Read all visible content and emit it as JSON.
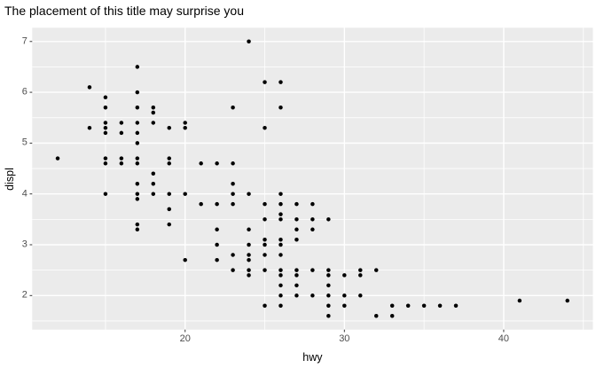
{
  "title": "The placement of this title may surprise you",
  "chart_data": {
    "type": "scatter",
    "title": "The placement of this title may surprise you",
    "xlabel": "hwy",
    "ylabel": "displ",
    "xlim": [
      10.4,
      45.6
    ],
    "ylim": [
      1.33,
      7.27
    ],
    "x_major_ticks": [
      20,
      30,
      40
    ],
    "x_minor_ticks": [
      15,
      25,
      35,
      45
    ],
    "y_major_ticks": [
      2,
      3,
      4,
      5,
      6,
      7
    ],
    "y_minor_ticks": [
      1.5,
      2.5,
      3.5,
      4.5,
      5.5,
      6.5
    ],
    "grid": true,
    "legend": "none",
    "panel_bg": "#EBEBEB",
    "grid_color": "#FFFFFF",
    "point_color": "#000000",
    "tick_label_color": "#4D4D4D",
    "tick_mark_color": "#333333",
    "points": [
      [
        12,
        4.7
      ],
      [
        14,
        5.3
      ],
      [
        14,
        6.1
      ],
      [
        15,
        4.0
      ],
      [
        15,
        4.6
      ],
      [
        15,
        4.7
      ],
      [
        15,
        5.2
      ],
      [
        15,
        5.3
      ],
      [
        15,
        5.4
      ],
      [
        15,
        5.7
      ],
      [
        15,
        5.9
      ],
      [
        16,
        4.6
      ],
      [
        16,
        4.7
      ],
      [
        16,
        5.2
      ],
      [
        16,
        5.4
      ],
      [
        17,
        3.3
      ],
      [
        17,
        3.4
      ],
      [
        17,
        3.9
      ],
      [
        17,
        4.0
      ],
      [
        17,
        4.2
      ],
      [
        17,
        4.6
      ],
      [
        17,
        4.7
      ],
      [
        17,
        5.0
      ],
      [
        17,
        5.2
      ],
      [
        17,
        5.4
      ],
      [
        17,
        5.7
      ],
      [
        17,
        6.0
      ],
      [
        17,
        6.5
      ],
      [
        18,
        4.0
      ],
      [
        18,
        4.2
      ],
      [
        18,
        4.4
      ],
      [
        18,
        5.4
      ],
      [
        18,
        5.6
      ],
      [
        18,
        5.7
      ],
      [
        19,
        3.4
      ],
      [
        19,
        3.7
      ],
      [
        19,
        4.0
      ],
      [
        19,
        4.6
      ],
      [
        19,
        4.7
      ],
      [
        19,
        5.3
      ],
      [
        20,
        2.7
      ],
      [
        20,
        4.0
      ],
      [
        20,
        5.3
      ],
      [
        20,
        5.4
      ],
      [
        21,
        3.8
      ],
      [
        21,
        4.6
      ],
      [
        22,
        2.7
      ],
      [
        22,
        3.0
      ],
      [
        22,
        3.3
      ],
      [
        22,
        3.8
      ],
      [
        22,
        4.6
      ],
      [
        23,
        2.5
      ],
      [
        23,
        2.8
      ],
      [
        23,
        3.8
      ],
      [
        23,
        4.0
      ],
      [
        23,
        4.2
      ],
      [
        23,
        4.6
      ],
      [
        23,
        5.7
      ],
      [
        24,
        2.4
      ],
      [
        24,
        2.5
      ],
      [
        24,
        2.7
      ],
      [
        24,
        2.8
      ],
      [
        24,
        3.0
      ],
      [
        24,
        3.3
      ],
      [
        24,
        4.0
      ],
      [
        24,
        7.0
      ],
      [
        25,
        1.8
      ],
      [
        25,
        2.5
      ],
      [
        25,
        2.8
      ],
      [
        25,
        3.0
      ],
      [
        25,
        3.1
      ],
      [
        25,
        3.5
      ],
      [
        25,
        3.8
      ],
      [
        25,
        5.3
      ],
      [
        25,
        6.2
      ],
      [
        26,
        1.8
      ],
      [
        26,
        2.0
      ],
      [
        26,
        2.2
      ],
      [
        26,
        2.4
      ],
      [
        26,
        2.5
      ],
      [
        26,
        2.8
      ],
      [
        26,
        3.0
      ],
      [
        26,
        3.1
      ],
      [
        26,
        3.5
      ],
      [
        26,
        3.6
      ],
      [
        26,
        3.8
      ],
      [
        26,
        4.0
      ],
      [
        26,
        5.7
      ],
      [
        26,
        6.2
      ],
      [
        27,
        2.0
      ],
      [
        27,
        2.2
      ],
      [
        27,
        2.4
      ],
      [
        27,
        2.5
      ],
      [
        27,
        3.1
      ],
      [
        27,
        3.3
      ],
      [
        27,
        3.5
      ],
      [
        27,
        3.8
      ],
      [
        28,
        2.0
      ],
      [
        28,
        2.5
      ],
      [
        28,
        3.3
      ],
      [
        28,
        3.5
      ],
      [
        28,
        3.8
      ],
      [
        29,
        1.6
      ],
      [
        29,
        1.8
      ],
      [
        29,
        2.0
      ],
      [
        29,
        2.2
      ],
      [
        29,
        2.4
      ],
      [
        29,
        2.5
      ],
      [
        29,
        3.5
      ],
      [
        30,
        1.8
      ],
      [
        30,
        2.0
      ],
      [
        30,
        2.4
      ],
      [
        31,
        2.0
      ],
      [
        31,
        2.4
      ],
      [
        31,
        2.5
      ],
      [
        32,
        1.6
      ],
      [
        32,
        2.5
      ],
      [
        33,
        1.6
      ],
      [
        33,
        1.8
      ],
      [
        34,
        1.8
      ],
      [
        35,
        1.8
      ],
      [
        36,
        1.8
      ],
      [
        37,
        1.8
      ],
      [
        41,
        1.9
      ],
      [
        44,
        1.9
      ]
    ]
  }
}
